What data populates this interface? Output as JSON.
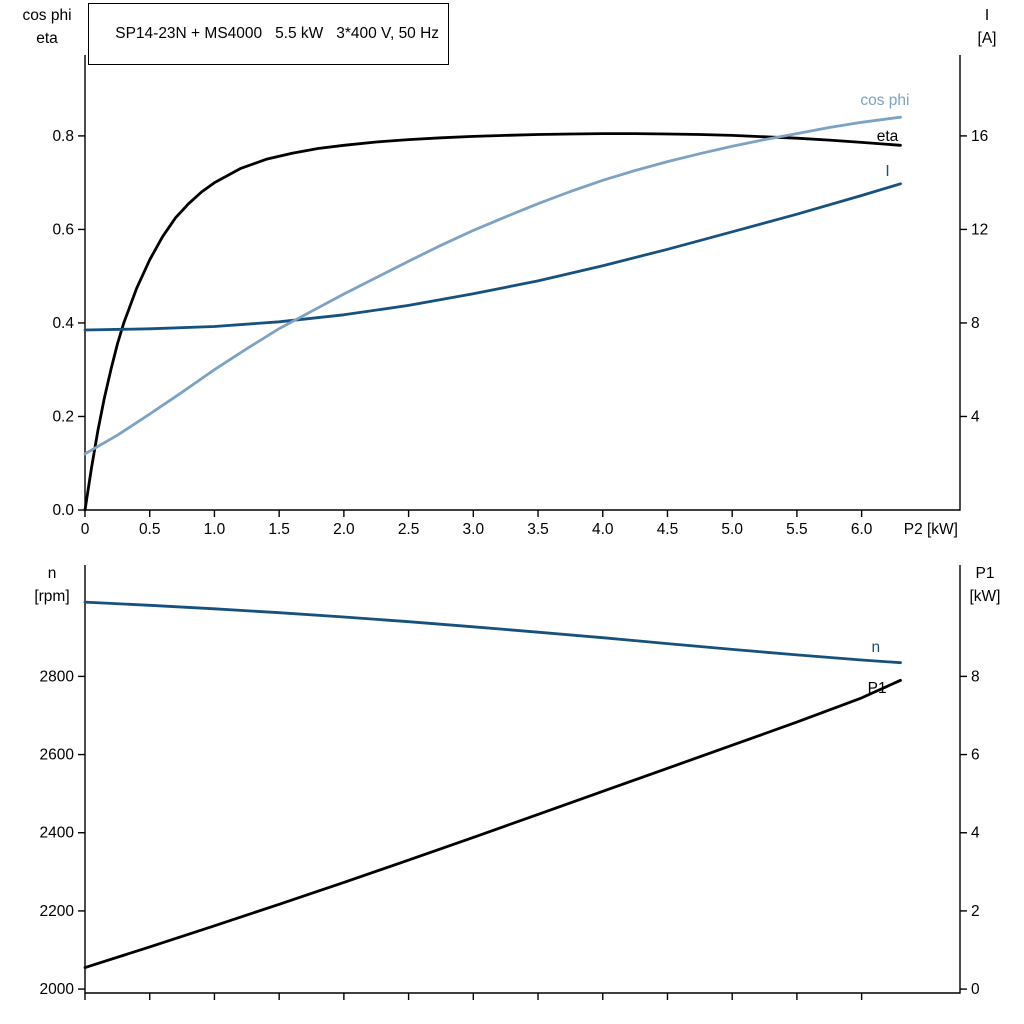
{
  "header": {
    "title": "SP14-23N + MS4000   5.5 kW   3*400 V, 50 Hz"
  },
  "colors": {
    "black": "#000000",
    "light_blue": "#7da2c4",
    "dark_blue": "#17517e",
    "axis": "#000000"
  },
  "chart_data": [
    {
      "id": "top",
      "type": "line",
      "title": "SP14-23N + MS4000   5.5 kW   3*400 V, 50 Hz",
      "x_axis": {
        "label": "P2 [kW]",
        "min": 0,
        "max": 6.76,
        "ticks": [
          0,
          0.5,
          1.0,
          1.5,
          2.0,
          2.5,
          3.0,
          3.5,
          4.0,
          4.5,
          5.0,
          5.5,
          6.0
        ],
        "tick_labels": [
          "0",
          "0.5",
          "1.0",
          "1.5",
          "2.0",
          "2.5",
          "3.0",
          "3.5",
          "4.0",
          "4.5",
          "5.0",
          "5.5",
          "6.0"
        ]
      },
      "left_axis": {
        "title_lines": [
          "cos phi",
          "eta"
        ],
        "min": 0,
        "max": 0.973,
        "ticks": [
          0.0,
          0.2,
          0.4,
          0.6,
          0.8
        ],
        "tick_labels": [
          "0.0",
          "0.2",
          "0.4",
          "0.6",
          "0.8"
        ]
      },
      "right_axis": {
        "title_lines": [
          "I",
          "[A]"
        ],
        "min": 0,
        "max": 19.46,
        "ticks": [
          4,
          8,
          12,
          16
        ],
        "tick_labels": [
          "4",
          "8",
          "12",
          "16"
        ]
      },
      "series": [
        {
          "name": "eta",
          "label": "eta",
          "color": "#000000",
          "axis": "left",
          "label_at": [
            6.2,
            0.8
          ],
          "points": [
            [
              0,
              0
            ],
            [
              0.05,
              0.09
            ],
            [
              0.1,
              0.17
            ],
            [
              0.15,
              0.24
            ],
            [
              0.2,
              0.3
            ],
            [
              0.25,
              0.355
            ],
            [
              0.3,
              0.4
            ],
            [
              0.4,
              0.475
            ],
            [
              0.5,
              0.535
            ],
            [
              0.6,
              0.585
            ],
            [
              0.7,
              0.625
            ],
            [
              0.8,
              0.655
            ],
            [
              0.9,
              0.68
            ],
            [
              1.0,
              0.7
            ],
            [
              1.2,
              0.73
            ],
            [
              1.4,
              0.75
            ],
            [
              1.6,
              0.763
            ],
            [
              1.8,
              0.773
            ],
            [
              2.0,
              0.78
            ],
            [
              2.25,
              0.787
            ],
            [
              2.5,
              0.792
            ],
            [
              2.75,
              0.796
            ],
            [
              3.0,
              0.799
            ],
            [
              3.25,
              0.801
            ],
            [
              3.5,
              0.803
            ],
            [
              3.75,
              0.804
            ],
            [
              4.0,
              0.805
            ],
            [
              4.25,
              0.805
            ],
            [
              4.5,
              0.804
            ],
            [
              4.75,
              0.803
            ],
            [
              5.0,
              0.801
            ],
            [
              5.25,
              0.798
            ],
            [
              5.5,
              0.795
            ],
            [
              5.75,
              0.791
            ],
            [
              6.0,
              0.786
            ],
            [
              6.3,
              0.78
            ]
          ]
        },
        {
          "name": "I",
          "label": "I",
          "color": "#17517e",
          "axis": "right",
          "label_at": [
            6.2,
            14.5
          ],
          "points": [
            [
              0,
              7.7
            ],
            [
              0.5,
              7.75
            ],
            [
              1.0,
              7.85
            ],
            [
              1.5,
              8.05
            ],
            [
              2.0,
              8.35
            ],
            [
              2.5,
              8.75
            ],
            [
              3.0,
              9.25
            ],
            [
              3.5,
              9.8
            ],
            [
              4.0,
              10.45
            ],
            [
              4.5,
              11.15
            ],
            [
              5.0,
              11.9
            ],
            [
              5.5,
              12.65
            ],
            [
              6.0,
              13.45
            ],
            [
              6.3,
              13.95
            ]
          ]
        },
        {
          "name": "cos phi",
          "label": "cos phi",
          "color": "#7da2c4",
          "axis": "left",
          "label_at": [
            6.18,
            0.877
          ],
          "points": [
            [
              0,
              0.12
            ],
            [
              0.25,
              0.16
            ],
            [
              0.5,
              0.205
            ],
            [
              0.75,
              0.252
            ],
            [
              1.0,
              0.3
            ],
            [
              1.25,
              0.345
            ],
            [
              1.5,
              0.388
            ],
            [
              1.75,
              0.425
            ],
            [
              2.0,
              0.462
            ],
            [
              2.25,
              0.497
            ],
            [
              2.5,
              0.532
            ],
            [
              2.75,
              0.566
            ],
            [
              3.0,
              0.598
            ],
            [
              3.25,
              0.627
            ],
            [
              3.5,
              0.655
            ],
            [
              3.75,
              0.681
            ],
            [
              4.0,
              0.705
            ],
            [
              4.25,
              0.726
            ],
            [
              4.5,
              0.745
            ],
            [
              4.75,
              0.762
            ],
            [
              5.0,
              0.778
            ],
            [
              5.25,
              0.792
            ],
            [
              5.5,
              0.805
            ],
            [
              5.75,
              0.818
            ],
            [
              6.0,
              0.829
            ],
            [
              6.3,
              0.84
            ]
          ]
        }
      ]
    },
    {
      "id": "bottom",
      "type": "line",
      "title": "",
      "x_axis": {
        "label": "",
        "min": 0,
        "max": 6.76,
        "ticks": [
          0,
          0.5,
          1.0,
          1.5,
          2.0,
          2.5,
          3.0,
          3.5,
          4.0,
          4.5,
          5.0,
          5.5,
          6.0
        ],
        "tick_labels": []
      },
      "left_axis": {
        "title_lines": [
          "n",
          "[rpm]"
        ],
        "min": 1990,
        "max": 3085,
        "ticks": [
          2000,
          2200,
          2400,
          2600,
          2800
        ],
        "tick_labels": [
          "2000",
          "2200",
          "2400",
          "2600",
          "2800"
        ]
      },
      "right_axis": {
        "title_lines": [
          "P1",
          "[kW]"
        ],
        "min": -0.1,
        "max": 10.85,
        "ticks": [
          0,
          2,
          4,
          6,
          8
        ],
        "tick_labels": [
          "0",
          "2",
          "4",
          "6",
          "8"
        ]
      },
      "series": [
        {
          "name": "n",
          "label": "n",
          "color": "#17517e",
          "axis": "left",
          "label_at": [
            6.11,
            2875
          ],
          "points": [
            [
              0,
              2990
            ],
            [
              0.5,
              2982
            ],
            [
              1.0,
              2973
            ],
            [
              1.5,
              2963
            ],
            [
              2.0,
              2952
            ],
            [
              2.5,
              2940
            ],
            [
              3.0,
              2927
            ],
            [
              3.5,
              2913
            ],
            [
              4.0,
              2899
            ],
            [
              4.5,
              2884
            ],
            [
              5.0,
              2869
            ],
            [
              5.5,
              2855
            ],
            [
              6.0,
              2842
            ],
            [
              6.3,
              2835
            ]
          ]
        },
        {
          "name": "P1",
          "label": "P1",
          "color": "#000000",
          "axis": "right",
          "label_at": [
            6.12,
            7.7
          ],
          "points": [
            [
              0,
              0.55
            ],
            [
              0.5,
              1.08
            ],
            [
              1.0,
              1.62
            ],
            [
              1.5,
              2.17
            ],
            [
              2.0,
              2.73
            ],
            [
              2.5,
              3.3
            ],
            [
              3.0,
              3.88
            ],
            [
              3.5,
              4.47
            ],
            [
              4.0,
              5.06
            ],
            [
              4.5,
              5.65
            ],
            [
              5.0,
              6.24
            ],
            [
              5.5,
              6.83
            ],
            [
              6.0,
              7.45
            ],
            [
              6.3,
              7.9
            ]
          ]
        }
      ]
    }
  ]
}
